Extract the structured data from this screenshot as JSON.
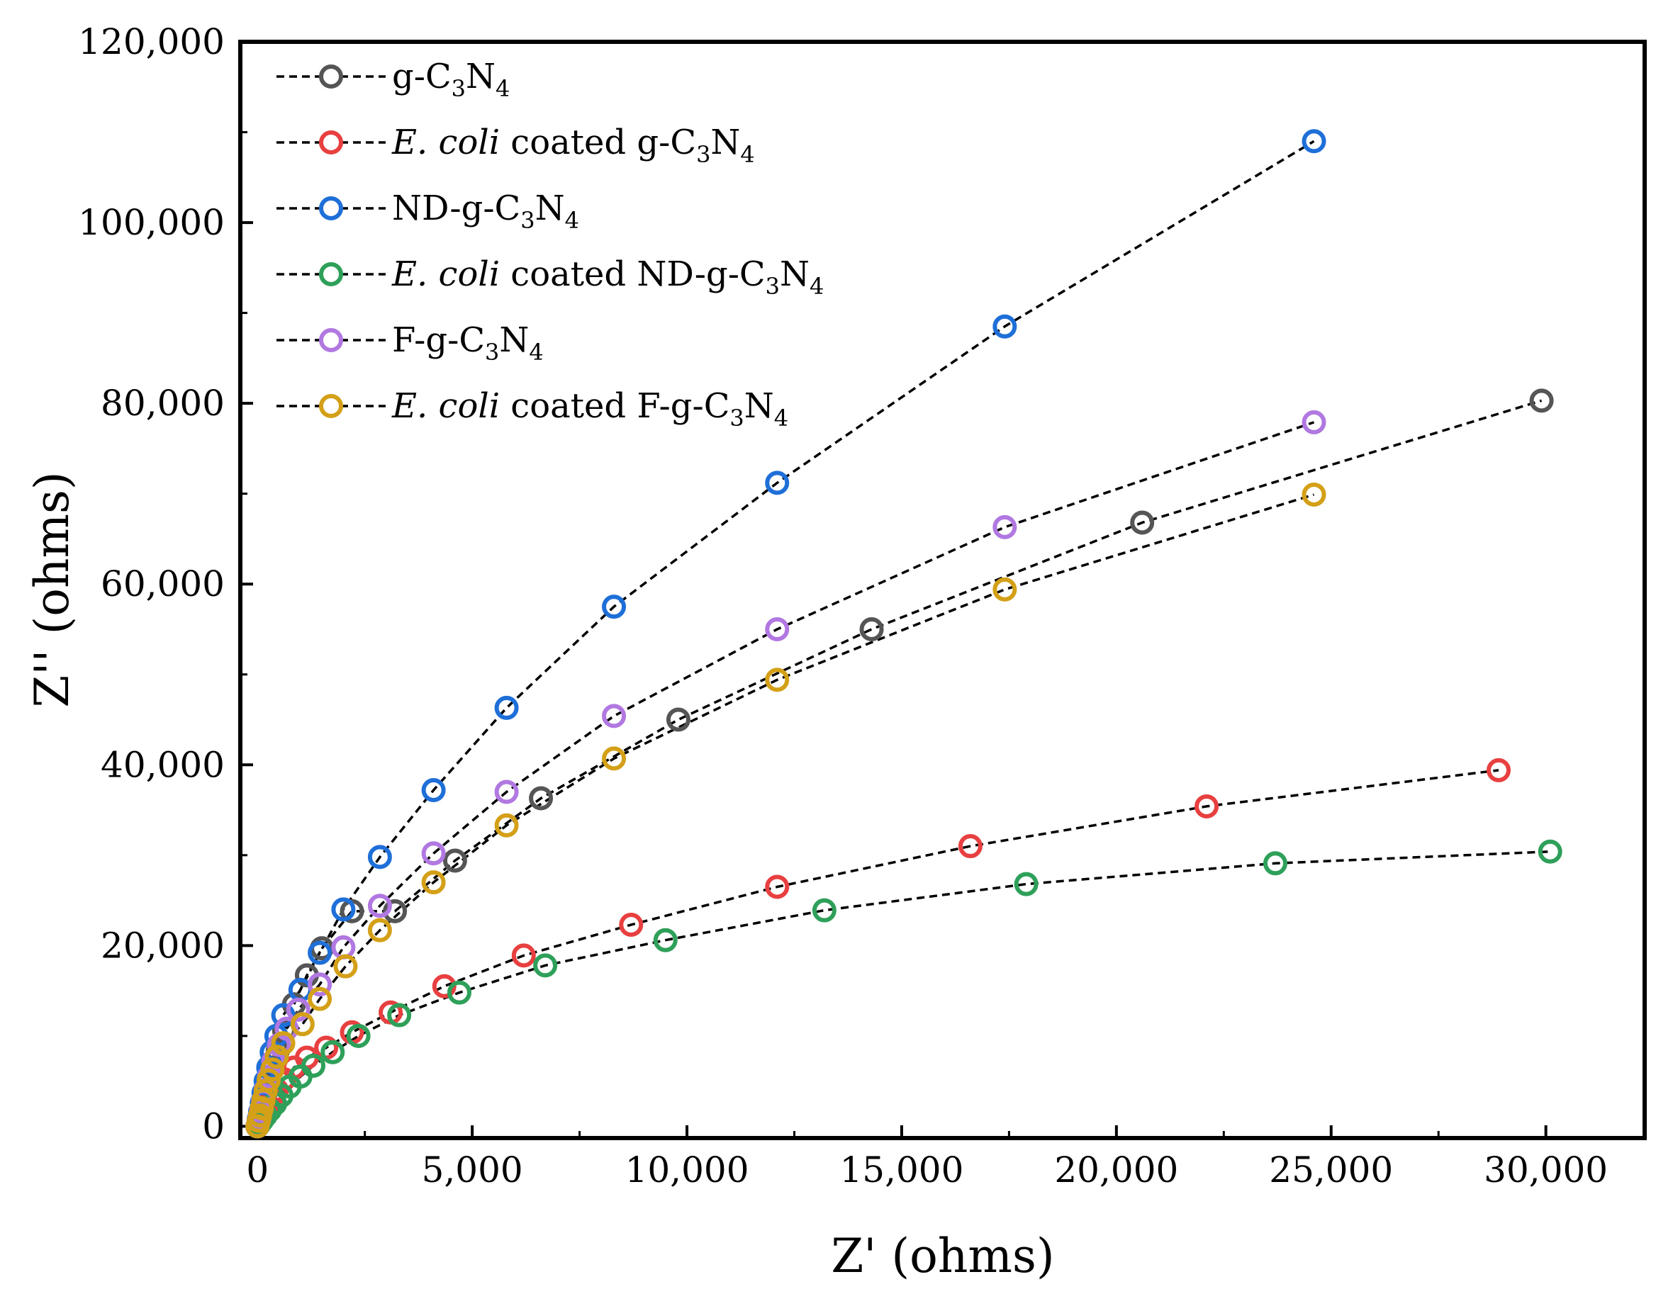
{
  "chart_data": {
    "type": "scatter",
    "xlabel": "Z' (ohms)",
    "ylabel": "Z'' (ohms)",
    "xlim": [
      -400,
      32300
    ],
    "ylim": [
      -1300,
      120000
    ],
    "xticks": [
      "0",
      "5,000",
      "10,000",
      "15,000",
      "20,000",
      "25,000",
      "30,000"
    ],
    "xtick_values": [
      0,
      5000,
      10000,
      15000,
      20000,
      25000,
      30000
    ],
    "yticks": [
      "0",
      "20,000",
      "40,000",
      "60,000",
      "80,000",
      "100,000",
      "120,000"
    ],
    "ytick_values": [
      0,
      20000,
      40000,
      60000,
      80000,
      100000,
      120000
    ],
    "legend_position": "top-left",
    "line_style": "dashed black",
    "marker": "open circle",
    "series": [
      {
        "name": "g-C3N4",
        "legend_parts": [
          {
            "t": "g-C",
            "s": ""
          },
          {
            "t": "3",
            "s": "sub"
          },
          {
            "t": "N",
            "s": ""
          },
          {
            "t": "4",
            "s": "sub"
          }
        ],
        "color": "#555555",
        "points": [
          [
            0,
            0
          ],
          [
            30,
            600
          ],
          [
            60,
            1200
          ],
          [
            100,
            1900
          ],
          [
            140,
            2700
          ],
          [
            190,
            3700
          ],
          [
            260,
            5000
          ],
          [
            350,
            6500
          ],
          [
            470,
            8300
          ],
          [
            620,
            10600
          ],
          [
            850,
            13500
          ],
          [
            1150,
            16700
          ],
          [
            1500,
            19700
          ],
          [
            2200,
            23800
          ],
          [
            3200,
            23800
          ],
          [
            4600,
            29400
          ],
          [
            6600,
            36300
          ],
          [
            9800,
            45000
          ],
          [
            14300,
            55000
          ],
          [
            20600,
            66800
          ],
          [
            29900,
            80300
          ]
        ]
      },
      {
        "name": "E. coli coated g-C3N4",
        "legend_parts": [
          {
            "t": "E. coli",
            "s": "i"
          },
          {
            "t": " coated g-C",
            "s": ""
          },
          {
            "t": "3",
            "s": "sub"
          },
          {
            "t": "N",
            "s": ""
          },
          {
            "t": "4",
            "s": "sub"
          }
        ],
        "color": "#e84040",
        "points": [
          [
            0,
            0
          ],
          [
            40,
            400
          ],
          [
            80,
            900
          ],
          [
            140,
            1500
          ],
          [
            220,
            2200
          ],
          [
            320,
            3000
          ],
          [
            450,
            4000
          ],
          [
            620,
            5200
          ],
          [
            850,
            6500
          ],
          [
            1150,
            7600
          ],
          [
            1600,
            8700
          ],
          [
            2200,
            10400
          ],
          [
            3100,
            12600
          ],
          [
            4350,
            15500
          ],
          [
            6200,
            18900
          ],
          [
            8700,
            22300
          ],
          [
            12100,
            26500
          ],
          [
            16600,
            31000
          ],
          [
            22100,
            35400
          ],
          [
            28900,
            39400
          ]
        ]
      },
      {
        "name": "ND-g-C3N4",
        "legend_parts": [
          {
            "t": "ND-g-C",
            "s": ""
          },
          {
            "t": "3",
            "s": "sub"
          },
          {
            "t": "N",
            "s": ""
          },
          {
            "t": "4",
            "s": "sub"
          }
        ],
        "color": "#1f6fd8",
        "points": [
          [
            0,
            0
          ],
          [
            30,
            800
          ],
          [
            60,
            1600
          ],
          [
            100,
            2600
          ],
          [
            140,
            3700
          ],
          [
            190,
            5000
          ],
          [
            250,
            6500
          ],
          [
            330,
            8200
          ],
          [
            440,
            10000
          ],
          [
            600,
            12300
          ],
          [
            1000,
            15100
          ],
          [
            1450,
            19200
          ],
          [
            2000,
            24000
          ],
          [
            2850,
            29800
          ],
          [
            4100,
            37200
          ],
          [
            5800,
            46300
          ],
          [
            8300,
            57500
          ],
          [
            12100,
            71200
          ],
          [
            17400,
            88500
          ],
          [
            24600,
            109000
          ]
        ]
      },
      {
        "name": "E. coli coated ND-g-C3N4",
        "legend_parts": [
          {
            "t": "E. coli",
            "s": "i"
          },
          {
            "t": " coated ND-g-C",
            "s": ""
          },
          {
            "t": "3",
            "s": "sub"
          },
          {
            "t": "N",
            "s": ""
          },
          {
            "t": "4",
            "s": "sub"
          }
        ],
        "color": "#2ea05a",
        "points": [
          [
            0,
            0
          ],
          [
            50,
            300
          ],
          [
            110,
            700
          ],
          [
            190,
            1200
          ],
          [
            290,
            1800
          ],
          [
            410,
            2500
          ],
          [
            560,
            3400
          ],
          [
            750,
            4400
          ],
          [
            1000,
            5500
          ],
          [
            1300,
            6700
          ],
          [
            1750,
            8200
          ],
          [
            2350,
            10000
          ],
          [
            3300,
            12300
          ],
          [
            4700,
            14800
          ],
          [
            6700,
            17800
          ],
          [
            9500,
            20600
          ],
          [
            13200,
            23900
          ],
          [
            17900,
            26800
          ],
          [
            23700,
            29100
          ],
          [
            30100,
            30400
          ]
        ]
      },
      {
        "name": "F-g-C3N4",
        "legend_parts": [
          {
            "t": "F-g-C",
            "s": ""
          },
          {
            "t": "3",
            "s": "sub"
          },
          {
            "t": "N",
            "s": ""
          },
          {
            "t": "4",
            "s": "sub"
          }
        ],
        "color": "#b078e0",
        "points": [
          [
            0,
            0
          ],
          [
            40,
            800
          ],
          [
            80,
            1700
          ],
          [
            130,
            2800
          ],
          [
            190,
            4000
          ],
          [
            270,
            5500
          ],
          [
            370,
            7200
          ],
          [
            500,
            9000
          ],
          [
            680,
            10800
          ],
          [
            950,
            12900
          ],
          [
            1450,
            15700
          ],
          [
            2000,
            19800
          ],
          [
            2850,
            24400
          ],
          [
            4100,
            30200
          ],
          [
            5800,
            37000
          ],
          [
            8300,
            45400
          ],
          [
            12100,
            55000
          ],
          [
            17400,
            66300
          ],
          [
            24600,
            77900
          ]
        ]
      },
      {
        "name": "E. coli coated F-g-C3N4",
        "legend_parts": [
          {
            "t": "E. coli",
            "s": "i"
          },
          {
            "t": " coated F-g-C",
            "s": ""
          },
          {
            "t": "3",
            "s": "sub"
          },
          {
            "t": "N",
            "s": ""
          },
          {
            "t": "4",
            "s": "sub"
          }
        ],
        "color": "#d4a017",
        "points": [
          [
            0,
            0
          ],
          [
            30,
            600
          ],
          [
            60,
            1200
          ],
          [
            100,
            2000
          ],
          [
            140,
            2900
          ],
          [
            190,
            3900
          ],
          [
            260,
            5100
          ],
          [
            350,
            6300
          ],
          [
            450,
            7700
          ],
          [
            600,
            9200
          ],
          [
            1050,
            11300
          ],
          [
            1450,
            14100
          ],
          [
            2050,
            17700
          ],
          [
            2850,
            21700
          ],
          [
            4100,
            27000
          ],
          [
            5800,
            33300
          ],
          [
            8300,
            40700
          ],
          [
            12100,
            49400
          ],
          [
            17400,
            59400
          ],
          [
            24600,
            69900
          ]
        ]
      }
    ]
  }
}
